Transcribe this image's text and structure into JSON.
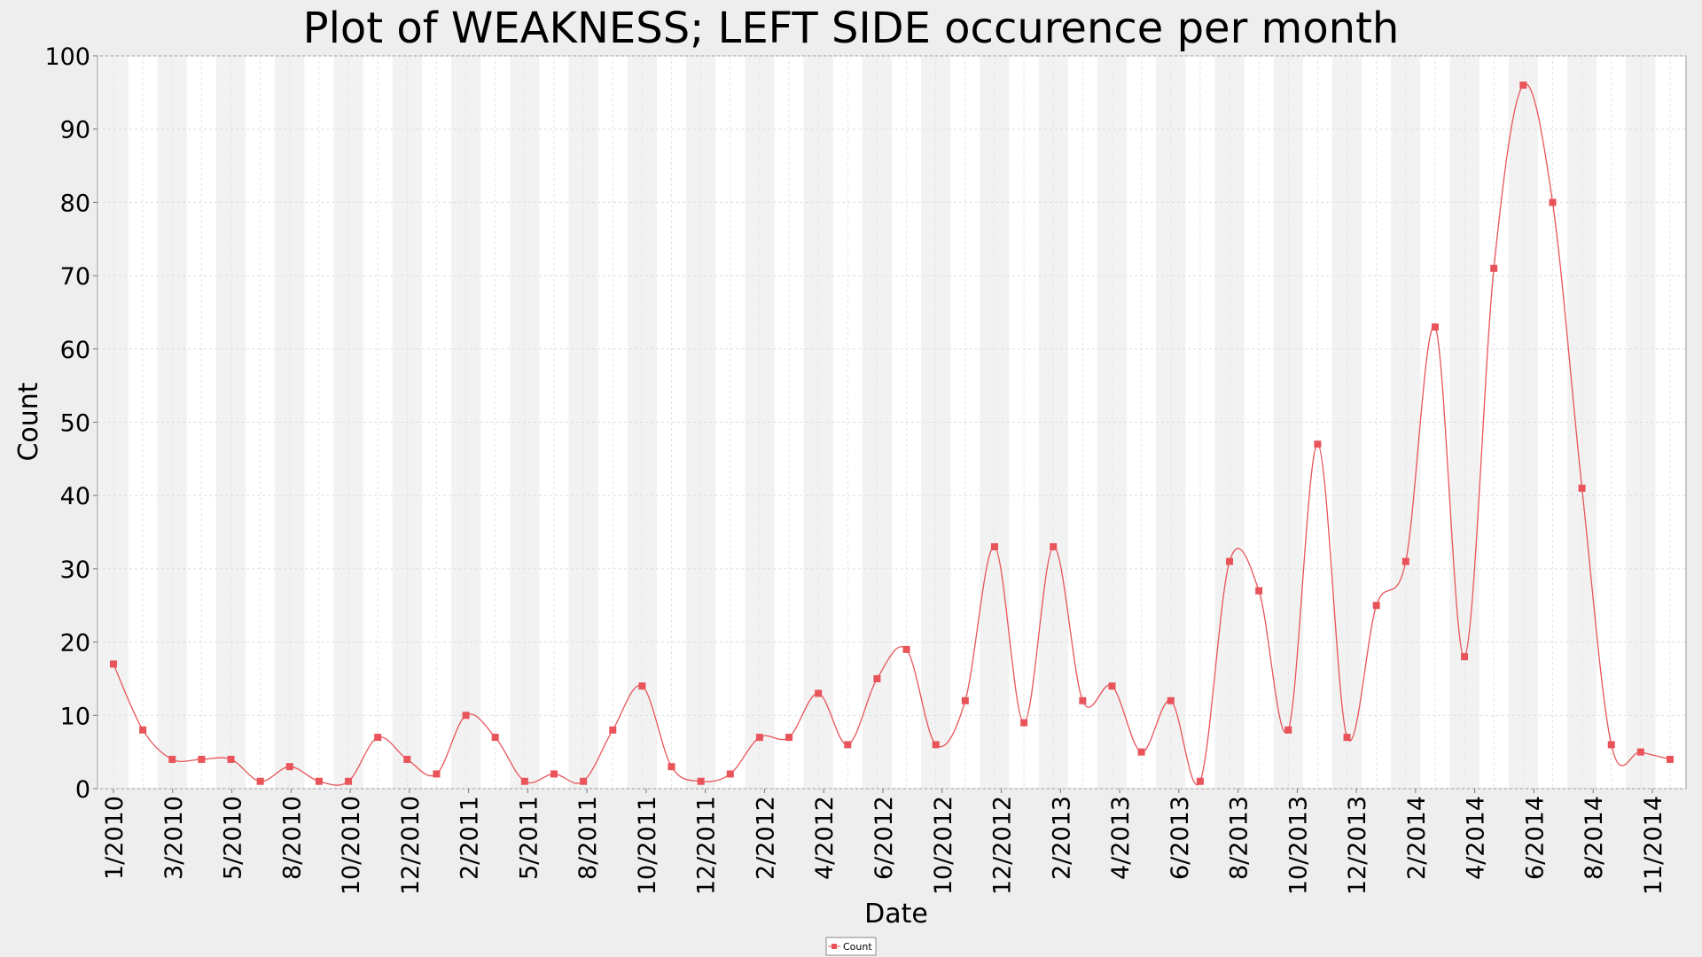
{
  "chart_data": {
    "type": "line",
    "title": "Plot of WEAKNESS; LEFT SIDE occurence per month",
    "xlabel": "Date",
    "ylabel": "Count",
    "ylim": [
      0,
      100
    ],
    "yticks": [
      0,
      10,
      20,
      30,
      40,
      50,
      60,
      70,
      80,
      90,
      100
    ],
    "xticks": [
      "1/2010",
      "3/2010",
      "5/2010",
      "8/2010",
      "10/2010",
      "12/2010",
      "2/2011",
      "5/2011",
      "8/2011",
      "10/2011",
      "12/2011",
      "2/2012",
      "4/2012",
      "6/2012",
      "10/2012",
      "12/2012",
      "2/2013",
      "4/2013",
      "6/2013",
      "8/2013",
      "10/2013",
      "12/2013",
      "2/2014",
      "4/2014",
      "6/2014",
      "8/2014",
      "11/2014"
    ],
    "grid": true,
    "legend_position": "bottom-center",
    "series": [
      {
        "name": "Count",
        "color": "#e8545a",
        "values": [
          17,
          8,
          4,
          4,
          4,
          1,
          3,
          1,
          1,
          7,
          4,
          2,
          10,
          7,
          1,
          2,
          1,
          8,
          14,
          3,
          1,
          2,
          7,
          7,
          13,
          6,
          15,
          19,
          6,
          12,
          33,
          9,
          33,
          12,
          14,
          5,
          12,
          1,
          31,
          27,
          8,
          47,
          7,
          25,
          31,
          63,
          18,
          71,
          96,
          80,
          41,
          6,
          5,
          4
        ]
      }
    ]
  }
}
